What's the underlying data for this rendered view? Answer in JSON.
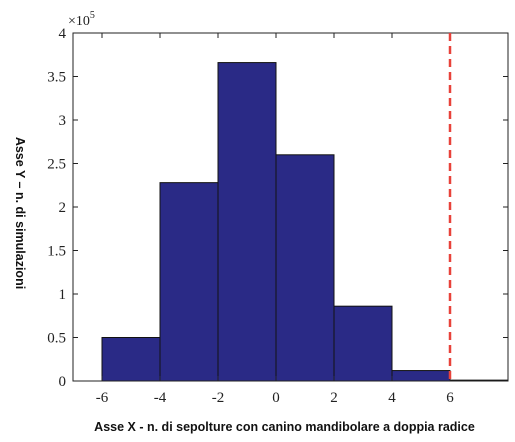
{
  "chart_data": {
    "type": "bar",
    "xlabel": "Asse X - n. di sepolture con canino mandibolare a doppia radice",
    "ylabel": "Asse Y – n. di simulazioni",
    "y_exponent": {
      "base": "×10",
      "power": "5"
    },
    "bins": [
      {
        "x0": -6.0,
        "x1": -4.0,
        "value": 0.5
      },
      {
        "x0": -4.0,
        "x1": -2.0,
        "value": 2.28
      },
      {
        "x0": -2.0,
        "x1": 0.0,
        "value": 3.66
      },
      {
        "x0": 0.0,
        "x1": 2.0,
        "value": 2.6
      },
      {
        "x0": 2.0,
        "x1": 4.0,
        "value": 0.86
      },
      {
        "x0": 4.0,
        "x1": 6.0,
        "value": 0.12
      },
      {
        "x0": 6.0,
        "x1": 8.0,
        "value": 0.01
      }
    ],
    "observed_line_x": 6,
    "xlim": [
      -7,
      8
    ],
    "ylim": [
      0,
      4
    ],
    "xticks": [
      -6,
      -4,
      -2,
      0,
      2,
      4,
      6
    ],
    "yticks": [
      0,
      0.5,
      1,
      1.5,
      2,
      2.5,
      3,
      3.5,
      4
    ],
    "ytick_labels": [
      "0",
      "0.5",
      "1",
      "1.5",
      "2",
      "2.5",
      "3",
      "3.5",
      "4"
    ],
    "grid": false,
    "bar_color": "#2a2a86",
    "line_color": "#e8423a"
  }
}
